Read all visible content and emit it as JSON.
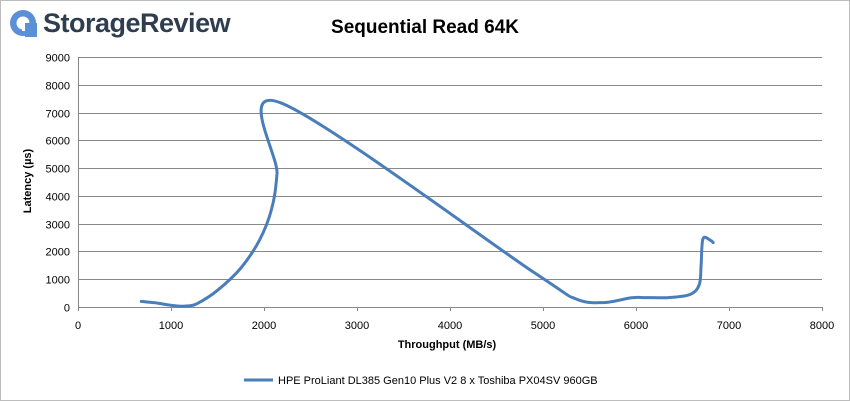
{
  "brand": {
    "name_part1": "Storage",
    "name_part2": "Review",
    "logo_icon": "storagereview-logo-icon",
    "logo_color": "#5b8fd6"
  },
  "chart_data": {
    "type": "line",
    "title": "Sequential Read 64K",
    "xlabel": "Throughput (MB/s)",
    "ylabel": "Latency (µs)",
    "xlim": [
      0,
      8000
    ],
    "ylim": [
      0,
      9000
    ],
    "x_ticks": [
      0,
      1000,
      2000,
      3000,
      4000,
      5000,
      6000,
      7000,
      8000
    ],
    "y_ticks": [
      0,
      1000,
      2000,
      3000,
      4000,
      5000,
      6000,
      7000,
      8000,
      9000
    ],
    "grid": true,
    "legend_position": "bottom",
    "series": [
      {
        "name": "HPE ProLiant DL385 Gen10 Plus V2 8 x Toshiba PX04SV 960GB",
        "color": "#4a7ebb",
        "points": [
          [
            680,
            200
          ],
          [
            830,
            150
          ],
          [
            1050,
            40
          ],
          [
            1180,
            40
          ],
          [
            1280,
            120
          ],
          [
            1500,
            600
          ],
          [
            1750,
            1400
          ],
          [
            1950,
            2400
          ],
          [
            2080,
            3500
          ],
          [
            2140,
            4800
          ],
          [
            2180,
            7350
          ],
          [
            4900,
            1250
          ],
          [
            5350,
            300
          ],
          [
            5650,
            160
          ],
          [
            5950,
            330
          ],
          [
            6100,
            340
          ],
          [
            6350,
            340
          ],
          [
            6580,
            450
          ],
          [
            6680,
            800
          ],
          [
            6700,
            1500
          ],
          [
            6720,
            2450
          ],
          [
            6800,
            2400
          ],
          [
            6830,
            2320
          ]
        ]
      }
    ]
  }
}
